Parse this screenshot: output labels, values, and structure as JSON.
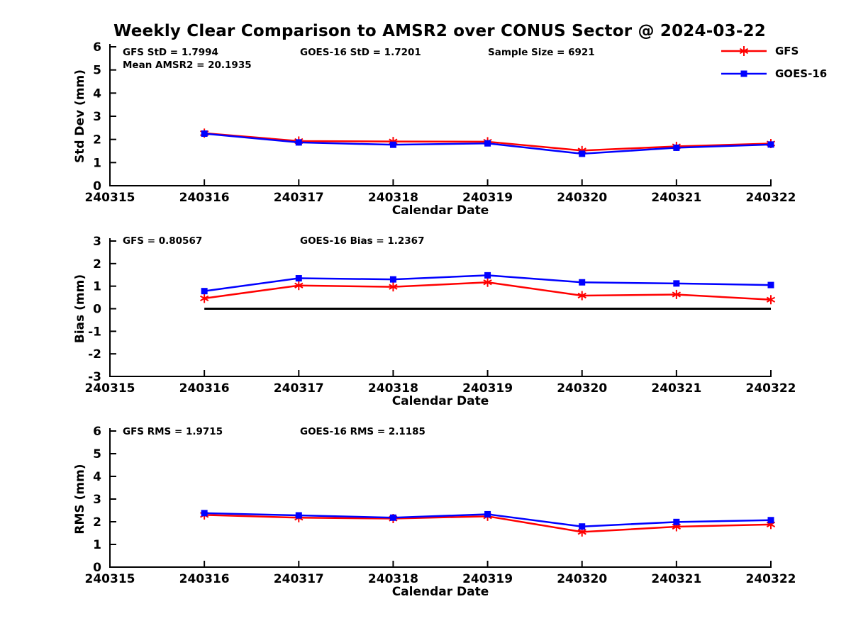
{
  "title": "Weekly Clear Comparison to AMSR2 over CONUS Sector @ 2024-03-22",
  "legend": {
    "position": "top-right",
    "items": [
      {
        "label": "GFS",
        "color": "#FF0000",
        "marker": "asterisk"
      },
      {
        "label": "GOES-16",
        "color": "#0000FF",
        "marker": "square"
      }
    ]
  },
  "chart_data": [
    {
      "type": "line",
      "panel": "std-dev",
      "xlabel": "Calendar Date",
      "ylabel": "Std Dev (mm)",
      "ylim": [
        0,
        6
      ],
      "yticks": [
        0,
        1,
        2,
        3,
        4,
        5,
        6
      ],
      "x_ticklabels": [
        "240315",
        "240316",
        "240317",
        "240318",
        "240319",
        "240320",
        "240321",
        "240322"
      ],
      "categories": [
        "240316",
        "240317",
        "240318",
        "240319",
        "240320",
        "240321",
        "240322"
      ],
      "grid": false,
      "zero_line": false,
      "series": [
        {
          "name": "GFS",
          "color": "#FF0000",
          "marker": "asterisk",
          "values": [
            2.27,
            1.93,
            1.91,
            1.9,
            1.52,
            1.7,
            1.82
          ]
        },
        {
          "name": "GOES-16",
          "color": "#0000FF",
          "marker": "square",
          "values": [
            2.25,
            1.87,
            1.77,
            1.83,
            1.38,
            1.64,
            1.78
          ]
        }
      ],
      "annotations": [
        "GFS StD = 1.7994",
        "GOES-16 StD = 1.7201",
        "Sample Size = 6921",
        "Mean AMSR2 = 20.1935"
      ]
    },
    {
      "type": "line",
      "panel": "bias",
      "xlabel": "Calendar Date",
      "ylabel": "Bias (mm)",
      "ylim": [
        -3,
        3
      ],
      "yticks": [
        3,
        2,
        1,
        0,
        -1,
        -2,
        -3
      ],
      "x_ticklabels": [
        "240315",
        "240316",
        "240317",
        "240318",
        "240319",
        "240320",
        "240321",
        "240322"
      ],
      "categories": [
        "240316",
        "240317",
        "240318",
        "240319",
        "240320",
        "240321",
        "240322"
      ],
      "grid": false,
      "zero_line": true,
      "series": [
        {
          "name": "GFS",
          "color": "#FF0000",
          "marker": "asterisk",
          "values": [
            0.46,
            1.03,
            0.97,
            1.17,
            0.58,
            0.63,
            0.4
          ]
        },
        {
          "name": "GOES-16",
          "color": "#0000FF",
          "marker": "square",
          "values": [
            0.78,
            1.35,
            1.3,
            1.48,
            1.17,
            1.12,
            1.05
          ]
        }
      ],
      "annotations": [
        "GFS = 0.80567",
        "GOES-16 Bias  = 1.2367"
      ]
    },
    {
      "type": "line",
      "panel": "rms",
      "xlabel": "Calendar Date",
      "ylabel": "RMS (mm)",
      "ylim": [
        0,
        6
      ],
      "yticks": [
        0,
        1,
        2,
        3,
        4,
        5,
        6
      ],
      "x_ticklabels": [
        "240315",
        "240316",
        "240317",
        "240318",
        "240319",
        "240320",
        "240321",
        "240322"
      ],
      "categories": [
        "240316",
        "240317",
        "240318",
        "240319",
        "240320",
        "240321",
        "240322"
      ],
      "grid": false,
      "zero_line": false,
      "series": [
        {
          "name": "GFS",
          "color": "#FF0000",
          "marker": "asterisk",
          "values": [
            2.3,
            2.18,
            2.14,
            2.24,
            1.55,
            1.78,
            1.88
          ]
        },
        {
          "name": "GOES-16",
          "color": "#0000FF",
          "marker": "square",
          "values": [
            2.38,
            2.28,
            2.18,
            2.33,
            1.79,
            1.99,
            2.07
          ]
        }
      ],
      "annotations": [
        "GFS RMS = 1.9715",
        "GOES-16 RMS = 2.1185"
      ]
    }
  ]
}
